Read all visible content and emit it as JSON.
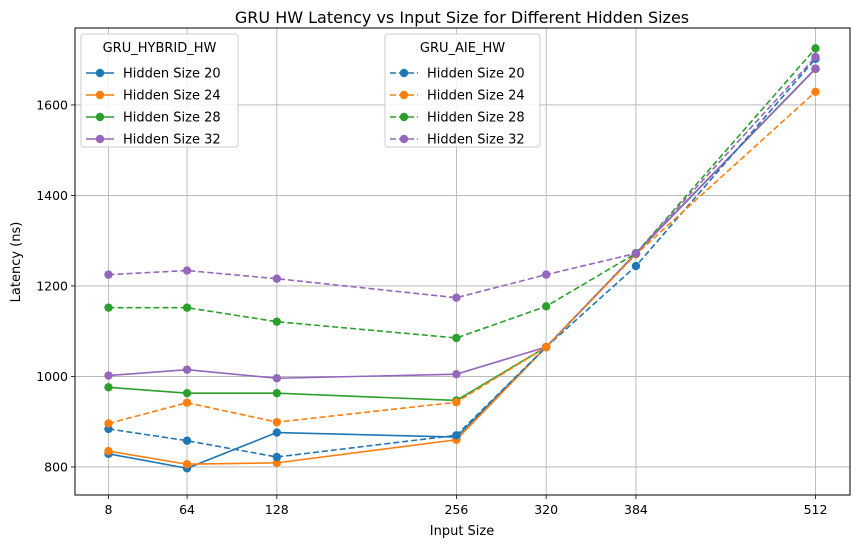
{
  "chart_data": {
    "type": "line",
    "title": "GRU HW Latency vs Input Size for Different Hidden Sizes",
    "xlabel": "Input Size",
    "ylabel": "Latency (ns)",
    "x": [
      8,
      64,
      128,
      256,
      320,
      384,
      512
    ],
    "x_tick_labels": [
      "8",
      "64",
      "128",
      "256",
      "320",
      "384",
      "512"
    ],
    "yticks": [
      800,
      1000,
      1200,
      1400,
      1600
    ],
    "ylim": [
      738,
      1770
    ],
    "grid": true,
    "legends": [
      {
        "title": "GRU_HYBRID_HW",
        "placement": "top-left",
        "style": "solid"
      },
      {
        "title": "GRU_AIE_HW",
        "placement": "top-center",
        "style": "dashed"
      }
    ],
    "series": [
      {
        "group": "GRU_HYBRID_HW",
        "name": "Hidden Size 20",
        "color": "#1f77b4",
        "style": "solid",
        "values": [
          829,
          797,
          876,
          866,
          1065,
          1272,
          1680
        ]
      },
      {
        "group": "GRU_HYBRID_HW",
        "name": "Hidden Size 24",
        "color": "#ff7f0e",
        "style": "solid",
        "values": [
          835,
          806,
          809,
          860,
          1065,
          1272,
          1680
        ]
      },
      {
        "group": "GRU_HYBRID_HW",
        "name": "Hidden Size 28",
        "color": "#2ca02c",
        "style": "solid",
        "values": [
          976,
          963,
          963,
          947,
          1065,
          1272,
          1680
        ]
      },
      {
        "group": "GRU_HYBRID_HW",
        "name": "Hidden Size 32",
        "color": "#9467bd",
        "style": "solid",
        "values": [
          1002,
          1015,
          996,
          1005,
          1065,
          1272,
          1680
        ]
      },
      {
        "group": "GRU_AIE_HW",
        "name": "Hidden Size 20",
        "color": "#1f77b4",
        "style": "dashed",
        "values": [
          884,
          858,
          822,
          870,
          1065,
          1244,
          1702
        ]
      },
      {
        "group": "GRU_AIE_HW",
        "name": "Hidden Size 24",
        "color": "#ff7f0e",
        "style": "dashed",
        "values": [
          896,
          942,
          899,
          943,
          1065,
          1270,
          1629
        ]
      },
      {
        "group": "GRU_AIE_HW",
        "name": "Hidden Size 28",
        "color": "#2ca02c",
        "style": "dashed",
        "values": [
          1152,
          1152,
          1121,
          1085,
          1155,
          1272,
          1725
        ]
      },
      {
        "group": "GRU_AIE_HW",
        "name": "Hidden Size 32",
        "color": "#9467bd",
        "style": "dashed",
        "values": [
          1225,
          1234,
          1216,
          1174,
          1225,
          1272,
          1706
        ]
      }
    ]
  }
}
